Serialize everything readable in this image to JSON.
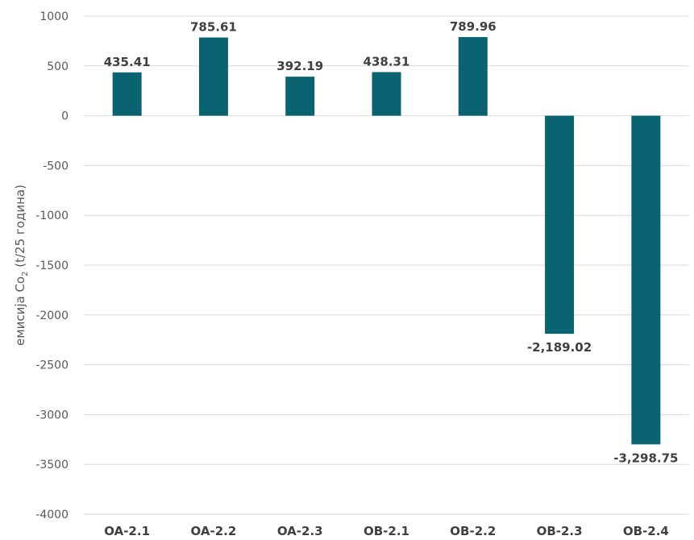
{
  "chart_data": {
    "type": "bar",
    "categories": [
      "OA-2.1",
      "OA-2.2",
      "OA-2.3",
      "OB-2.1",
      "OB-2.2",
      "OB-2.3",
      "OB-2.4"
    ],
    "values": [
      435.41,
      785.61,
      392.19,
      438.31,
      789.96,
      -2189.02,
      -3298.75
    ],
    "data_labels": [
      "435.41",
      "785.61",
      "392.19",
      "438.31",
      "789.96",
      "-2,189.02",
      "-3,298.75"
    ],
    "ylim": [
      -4000,
      1000
    ],
    "yticks": [
      1000,
      500,
      0,
      -500,
      -1000,
      -1500,
      -2000,
      -2500,
      -3000,
      -3500,
      -4000
    ],
    "ylabel": {
      "main": "емисија Co",
      "subscript": "2",
      "suffix": " (t/25 година)"
    },
    "xlabel": "",
    "title": "",
    "bar_color": "#0a6370",
    "grid": true,
    "legend": "none"
  }
}
